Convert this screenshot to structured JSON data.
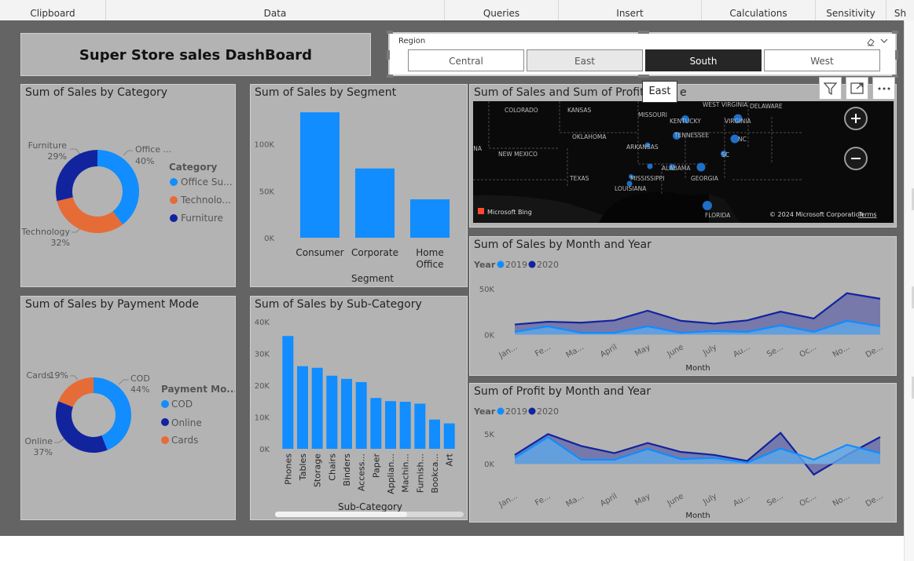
{
  "ribbon": {
    "groups": [
      "Clipboard",
      "Data",
      "Queries",
      "Insert",
      "Calculations",
      "Sensitivity",
      "Sh"
    ]
  },
  "dashboard": {
    "title": "Super Store sales DashBoard"
  },
  "slicer": {
    "label": "Region",
    "options": [
      "Central",
      "East",
      "South",
      "West"
    ],
    "selected": "South",
    "hovered": "East"
  },
  "tooltip": {
    "text": "East"
  },
  "colors": {
    "canvas": "#646464",
    "panel": "#b3b3b3",
    "light_blue": "#118dff",
    "dark_blue": "#12239e",
    "orange": "#e66c37",
    "area_2020": "#6b6fa8"
  },
  "chart_data": [
    {
      "id": "category",
      "type": "pie",
      "title": "Sum of Sales by Category",
      "donut": true,
      "legend_title": "Category",
      "legend_entries": [
        "Office Su...",
        "Technolo...",
        "Furniture"
      ],
      "slices": [
        {
          "name": "Office Supplies",
          "value": 40,
          "label": "Office ...",
          "pct": "40%",
          "color": "#118dff"
        },
        {
          "name": "Technology",
          "value": 32,
          "label": "Technology",
          "pct": "32%",
          "color": "#e66c37"
        },
        {
          "name": "Furniture",
          "value": 29,
          "label": "Furniture",
          "pct": "29%",
          "color": "#12239e"
        }
      ]
    },
    {
      "id": "segment",
      "type": "bar",
      "title": "Sum of Sales by Segment",
      "xlabel": "Segment",
      "ylabel": "",
      "categories": [
        "Consumer",
        "Corporate",
        "Home Office"
      ],
      "values": [
        134000,
        74000,
        41000
      ],
      "ylim": [
        0,
        140000
      ],
      "yticks": [
        {
          "v": 0,
          "label": "0K"
        },
        {
          "v": 50000,
          "label": "50K"
        },
        {
          "v": 100000,
          "label": "100K"
        }
      ]
    },
    {
      "id": "payment",
      "type": "pie",
      "title": "Sum of Sales by Payment Mode",
      "donut": true,
      "legend_title": "Payment Mo...",
      "legend_entries": [
        "COD",
        "Online",
        "Cards"
      ],
      "slices": [
        {
          "name": "COD",
          "value": 44,
          "label": "COD",
          "pct": "44%",
          "color": "#118dff"
        },
        {
          "name": "Online",
          "value": 37,
          "label": "Online",
          "pct": "37%",
          "color": "#12239e"
        },
        {
          "name": "Cards",
          "value": 19,
          "label": "Cards",
          "pct": "19%",
          "color": "#e66c37"
        }
      ]
    },
    {
      "id": "subcategory",
      "type": "bar",
      "title": "Sum of Sales by Sub-Category",
      "xlabel": "Sub-Category",
      "ylabel": "",
      "categories": [
        "Phones",
        "Tables",
        "Storage",
        "Chairs",
        "Binders",
        "Access...",
        "Paper",
        "Applian...",
        "Machin...",
        "Furnish...",
        "Bookca...",
        "Art"
      ],
      "values": [
        35500,
        26000,
        25500,
        23000,
        22000,
        21000,
        16000,
        15000,
        14800,
        14200,
        9200,
        8000
      ],
      "ylim": [
        0,
        40000
      ],
      "yticks": [
        {
          "v": 0,
          "label": "0K"
        },
        {
          "v": 10000,
          "label": "10K"
        },
        {
          "v": 20000,
          "label": "20K"
        },
        {
          "v": 30000,
          "label": "30K"
        },
        {
          "v": 40000,
          "label": "40K"
        }
      ]
    },
    {
      "id": "sales_month",
      "type": "area",
      "title": "Sum of Sales by Month and Year",
      "legend_title": "Year",
      "xlabel": "Month",
      "categories": [
        "Jan...",
        "Fe...",
        "Ma...",
        "April",
        "May",
        "June",
        "July",
        "Au...",
        "Se...",
        "Oc...",
        "No...",
        "De..."
      ],
      "series": [
        {
          "name": "2020",
          "color": "#12239e",
          "values": [
            11000,
            14000,
            13000,
            15500,
            26000,
            15000,
            12000,
            15500,
            25000,
            17500,
            45000,
            39000
          ]
        },
        {
          "name": "2019",
          "color": "#118dff",
          "values": [
            3000,
            9000,
            2000,
            2000,
            9000,
            2000,
            4000,
            3000,
            10000,
            3000,
            15000,
            9000
          ]
        }
      ],
      "ylim": [
        -3000,
        55000
      ],
      "yticks": [
        {
          "v": 0,
          "label": "0K"
        },
        {
          "v": 50000,
          "label": "50K"
        }
      ]
    },
    {
      "id": "profit_month",
      "type": "area",
      "title": "Sum of Profit by Month and Year",
      "legend_title": "Year",
      "xlabel": "Month",
      "categories": [
        "Jan...",
        "Fe...",
        "Ma...",
        "April",
        "May",
        "June",
        "July",
        "Au...",
        "Se...",
        "Oc...",
        "No...",
        "De..."
      ],
      "series": [
        {
          "name": "2020",
          "color": "#12239e",
          "values": [
            1500,
            5000,
            3000,
            1800,
            3500,
            2000,
            1500,
            500,
            5200,
            -1800,
            1500,
            4500
          ]
        },
        {
          "name": "2019",
          "color": "#118dff",
          "values": [
            1000,
            4500,
            700,
            700,
            2500,
            800,
            1000,
            200,
            2600,
            700,
            3200,
            1800
          ]
        }
      ],
      "ylim": [
        -3000,
        7000
      ],
      "yticks": [
        {
          "v": 0,
          "label": "0K"
        },
        {
          "v": 5000,
          "label": "5K"
        }
      ]
    },
    {
      "id": "map",
      "type": "scatter",
      "title": "Sum of Sales and Sum of Profit by State",
      "title_visible": "Sum of Sales and Sum of Profit",
      "title_suffix": "e",
      "map_labels": [
        "COLORADO",
        "KANSAS",
        "MISSOURI",
        "KENTUCKY",
        "WEST VIRGINIA",
        "VIRGINIA",
        "DELAWARE",
        "NEW MEXICO",
        "OKLAHOMA",
        "TENNESSEE",
        "ARKANSAS",
        "TEXAS",
        "MISSISSIPPI",
        "ALABAMA",
        "GEORGIA",
        "LOUISIANA",
        "FLORIDA",
        "NC",
        "SC",
        "INA"
      ],
      "attribution_left": "Microsoft Bing",
      "attribution_right": "© 2024 Microsoft Corporation",
      "terms": "Terms"
    }
  ]
}
